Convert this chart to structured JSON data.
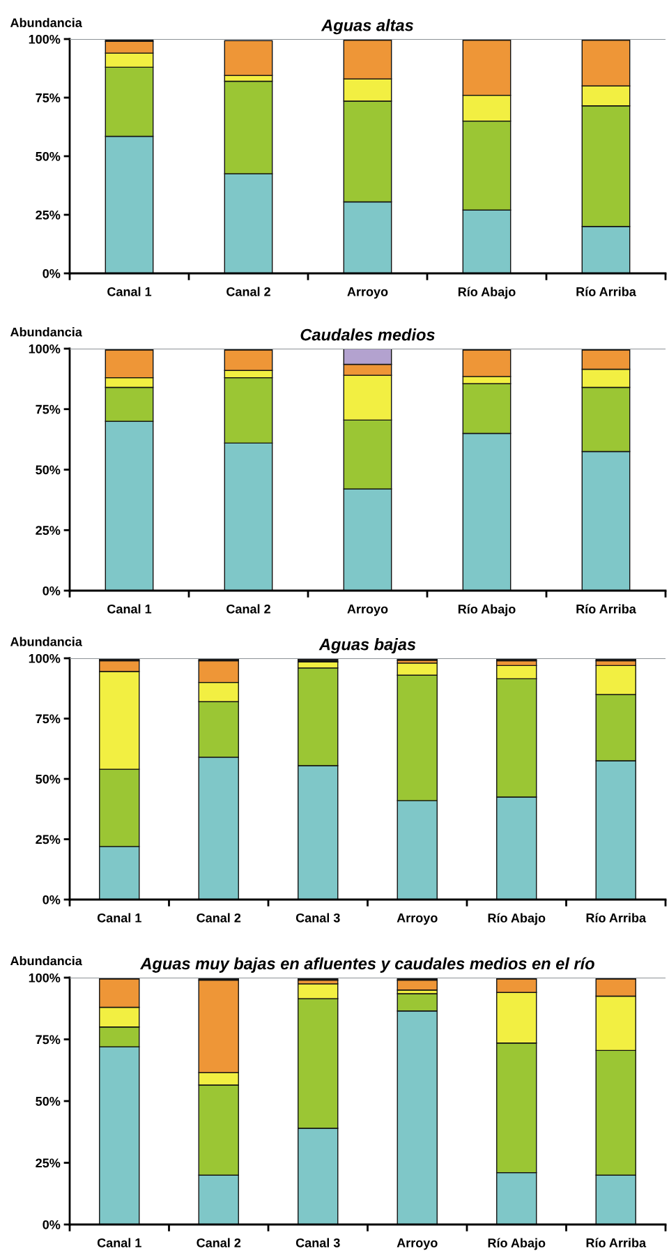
{
  "chart_data": [
    {
      "type": "bar",
      "stacked": true,
      "title": "Aguas altas",
      "ylabel": "Abundancia",
      "categories": [
        "Canal 1",
        "Canal 2",
        "Arroyo",
        "Río Abajo",
        "Río Arriba"
      ],
      "ylim": [
        0,
        100
      ],
      "yticks": [
        {
          "value": 0,
          "label": "0%"
        },
        {
          "value": 25,
          "label": "25%"
        },
        {
          "value": 50,
          "label": "50%"
        },
        {
          "value": 75,
          "label": "75%"
        },
        {
          "value": 100,
          "label": "100%"
        }
      ],
      "ref_lines": [
        {
          "axis": "y",
          "value": 100,
          "color": "#8c9296"
        }
      ],
      "series": [
        {
          "color": "#7fc7c8",
          "values": [
            58.5,
            42.5,
            30.5,
            27,
            20
          ]
        },
        {
          "color": "#9bc634",
          "values": [
            29.5,
            39.5,
            43,
            38,
            51.5
          ]
        },
        {
          "color": "#f2ef42",
          "values": [
            6,
            2.5,
            9.5,
            11,
            8.5
          ]
        },
        {
          "color": "#ee9637",
          "values": [
            5,
            14.8,
            16.5,
            23.5,
            19.5
          ]
        },
        {
          "color": "#1a1a1a",
          "values": [
            1,
            null,
            null,
            null,
            null
          ]
        }
      ]
    },
    {
      "type": "bar",
      "stacked": true,
      "title": "Caudales medios",
      "ylabel": "Abundancia",
      "categories": [
        "Canal 1",
        "Canal 2",
        "Arroyo",
        "Río Abajo",
        "Río Arriba"
      ],
      "ylim": [
        0,
        100
      ],
      "yticks": [
        {
          "value": 0,
          "label": "0%"
        },
        {
          "value": 25,
          "label": "25%"
        },
        {
          "value": 50,
          "label": "50%"
        },
        {
          "value": 75,
          "label": "75%"
        },
        {
          "value": 100,
          "label": "100%"
        }
      ],
      "ref_lines": [
        {
          "axis": "y",
          "value": 100,
          "color": "#8c9296"
        }
      ],
      "series": [
        {
          "color": "#7fc7c8",
          "values": [
            70,
            61,
            42,
            65,
            57.5
          ]
        },
        {
          "color": "#9bc634",
          "values": [
            14,
            27,
            28.5,
            20.5,
            26.5
          ]
        },
        {
          "color": "#f2ef42",
          "values": [
            4,
            3,
            18.5,
            3,
            7.5
          ]
        },
        {
          "color": "#ee9637",
          "values": [
            11.5,
            8.5,
            4.5,
            11,
            8
          ]
        },
        {
          "color": "#b3a2cf",
          "values": [
            null,
            null,
            6.5,
            null,
            null
          ]
        }
      ]
    },
    {
      "type": "bar",
      "stacked": true,
      "title": "Aguas bajas",
      "ylabel": "Abundancia",
      "categories": [
        "Canal 1",
        "Canal 2",
        "Canal 3",
        "Arroyo",
        "Río Abajo",
        "Río Arriba"
      ],
      "ylim": [
        0,
        100
      ],
      "yticks": [
        {
          "value": 0,
          "label": "0%"
        },
        {
          "value": 25,
          "label": "25%"
        },
        {
          "value": 50,
          "label": "50%"
        },
        {
          "value": 75,
          "label": "75%"
        },
        {
          "value": 100,
          "label": "100%"
        }
      ],
      "ref_lines": [
        {
          "axis": "y",
          "value": 100,
          "color": "#8c9296"
        }
      ],
      "series": [
        {
          "color": "#7fc7c8",
          "values": [
            22,
            59,
            55.5,
            41,
            42.5,
            57.5
          ]
        },
        {
          "color": "#9bc634",
          "values": [
            32,
            23,
            40.5,
            52,
            49,
            27.5
          ]
        },
        {
          "color": "#f2ef42",
          "values": [
            40.5,
            8,
            2.5,
            5,
            5.5,
            12
          ]
        },
        {
          "color": "#ee9637",
          "values": [
            4.5,
            9,
            null,
            1.2,
            2,
            2
          ]
        },
        {
          "color": "#1a1a1a",
          "values": [
            1,
            1,
            1.5,
            1,
            1,
            1
          ]
        }
      ]
    },
    {
      "type": "bar",
      "stacked": true,
      "title": "Aguas muy bajas en afluentes y caudales medios en el río",
      "ylabel": "Abundancia",
      "categories": [
        "Canal 1",
        "Canal 2",
        "Canal 3",
        "Arroyo",
        "Río Abajo",
        "Río Arriba"
      ],
      "ylim": [
        0,
        100
      ],
      "yticks": [
        {
          "value": 0,
          "label": "0%"
        },
        {
          "value": 25,
          "label": "25%"
        },
        {
          "value": 50,
          "label": "50%"
        },
        {
          "value": 75,
          "label": "75%"
        },
        {
          "value": 100,
          "label": "100%"
        }
      ],
      "ref_lines": [
        {
          "axis": "y",
          "value": 100,
          "color": "#8c9296"
        }
      ],
      "series": [
        {
          "color": "#7fc7c8",
          "values": [
            72,
            20,
            39,
            86.5,
            21,
            20
          ]
        },
        {
          "color": "#9bc634",
          "values": [
            8,
            36.5,
            52.5,
            7,
            52.5,
            50.5
          ]
        },
        {
          "color": "#f2ef42",
          "values": [
            8,
            5,
            6,
            1.5,
            20.5,
            22
          ]
        },
        {
          "color": "#ee9637",
          "values": [
            11.5,
            37.5,
            1.5,
            4,
            5.5,
            7
          ]
        },
        {
          "color": "#1a1a1a",
          "values": [
            null,
            1,
            1,
            1,
            null,
            null
          ]
        }
      ]
    }
  ]
}
